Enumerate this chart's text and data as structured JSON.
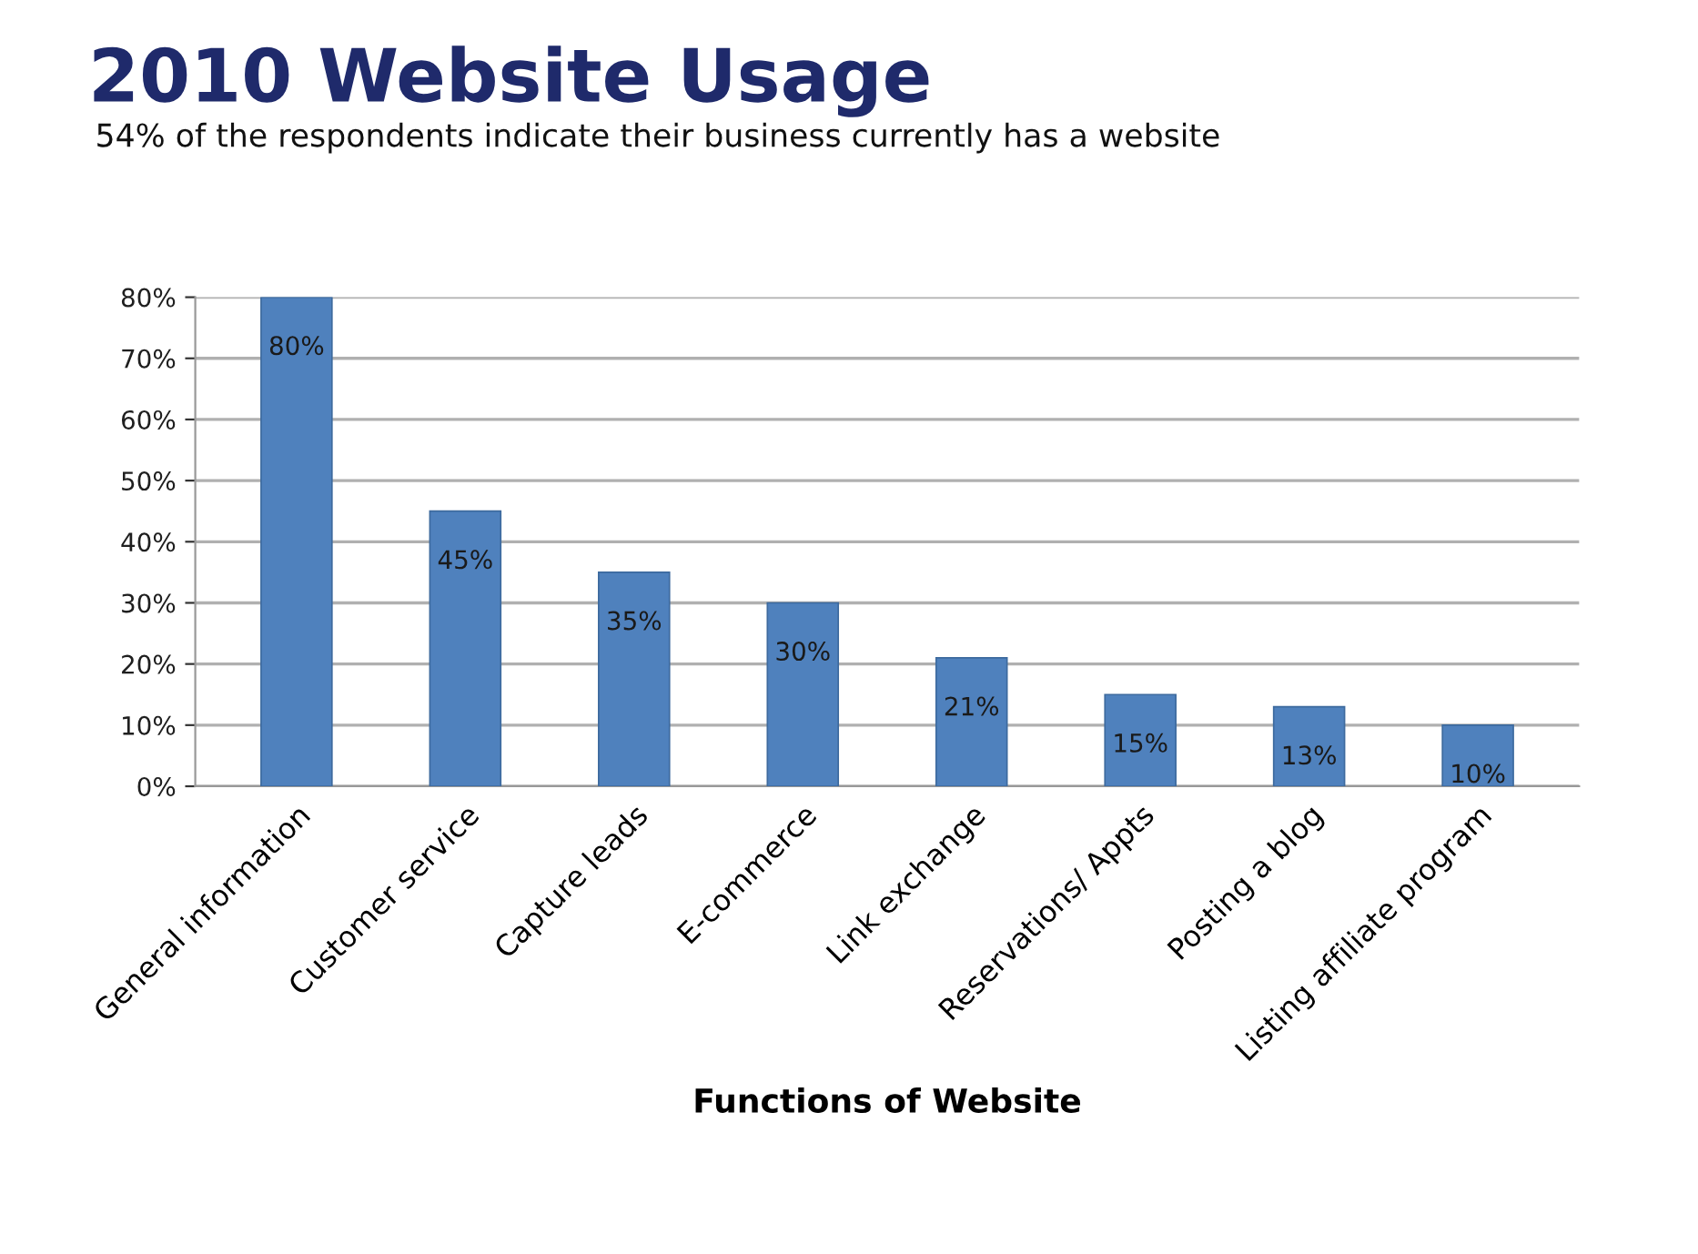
{
  "chart_data": {
    "type": "bar",
    "title": "2010 Website Usage",
    "subtitle": "54% of the respondents indicate their business currently has a website",
    "xlabel": "Functions of Website",
    "categories": [
      "General information",
      "Customer service",
      "Capture leads",
      "E-commerce",
      "Link exchange",
      "Reservations/ Appts",
      "Posting a blog",
      "Listing affiliate program"
    ],
    "values": [
      80,
      45,
      35,
      30,
      21,
      15,
      13,
      10
    ],
    "value_labels": [
      "80%",
      "45%",
      "35%",
      "30%",
      "21%",
      "15%",
      "13%",
      "10%"
    ],
    "color": "#4f81bd",
    "ylim": [
      0,
      80
    ],
    "yticks": [
      {
        "value": 0,
        "label": "0%"
      },
      {
        "value": 10,
        "label": "10%"
      },
      {
        "value": 20,
        "label": "20%"
      },
      {
        "value": 30,
        "label": "30%"
      },
      {
        "value": 40,
        "label": "40%"
      },
      {
        "value": 50,
        "label": "50%"
      },
      {
        "value": 60,
        "label": "60%"
      },
      {
        "value": 70,
        "label": "70%"
      },
      {
        "value": 80,
        "label": "80%"
      }
    ],
    "grid": "y",
    "legend": false
  }
}
